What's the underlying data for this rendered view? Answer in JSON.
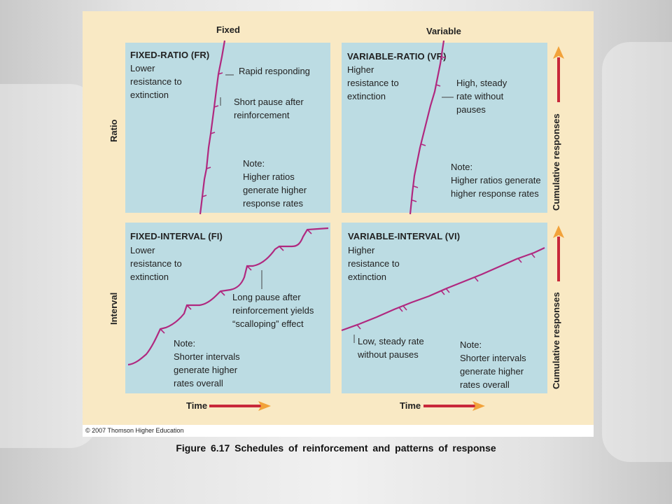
{
  "columns": {
    "fixed": "Fixed",
    "variable": "Variable"
  },
  "rows": {
    "ratio": "Ratio",
    "interval": "Interval"
  },
  "quadrants": {
    "fr": {
      "title": "FIXED-RATIO (FR)",
      "desc": "Lower\nresistance to\nextinction",
      "callout1": "Rapid responding",
      "callout2": "Short pause after\nreinforcement",
      "note": "Note:\nHigher ratios\ngenerate higher\nresponse rates"
    },
    "vr": {
      "title": "VARIABLE-RATIO (VR)",
      "desc": "Higher\nresistance to\nextinction",
      "callout1": "High, steady\nrate without\npauses",
      "note": "Note:\nHigher ratios generate\nhigher response rates"
    },
    "fi": {
      "title": "FIXED-INTERVAL (FI)",
      "desc": "Lower\nresistance to\nextinction",
      "callout1": "Long pause after\nreinforcement yields\n“scalloping” effect",
      "note": "Note:\nShorter intervals\ngenerate higher\nrates overall"
    },
    "vi": {
      "title": "VARIABLE-INTERVAL (VI)",
      "desc": "Higher\nresistance to\nextinction",
      "callout1": "Low, steady rate\nwithout pauses",
      "note": "Note:\nShorter intervals\ngenerate higher\nrates overall"
    }
  },
  "axes": {
    "time": "Time",
    "cumulative": "Cumulative responses"
  },
  "copyright": "© 2007 Thomson Higher Education",
  "caption": "Figure 6.17  Schedules of reinforcement and patterns of response",
  "colors": {
    "panel": "#f9e9c4",
    "quadrant": "#bcdce3",
    "curve": "#b0287f",
    "arrow": "#c8283a",
    "arrow_head": "#f2a23a"
  }
}
